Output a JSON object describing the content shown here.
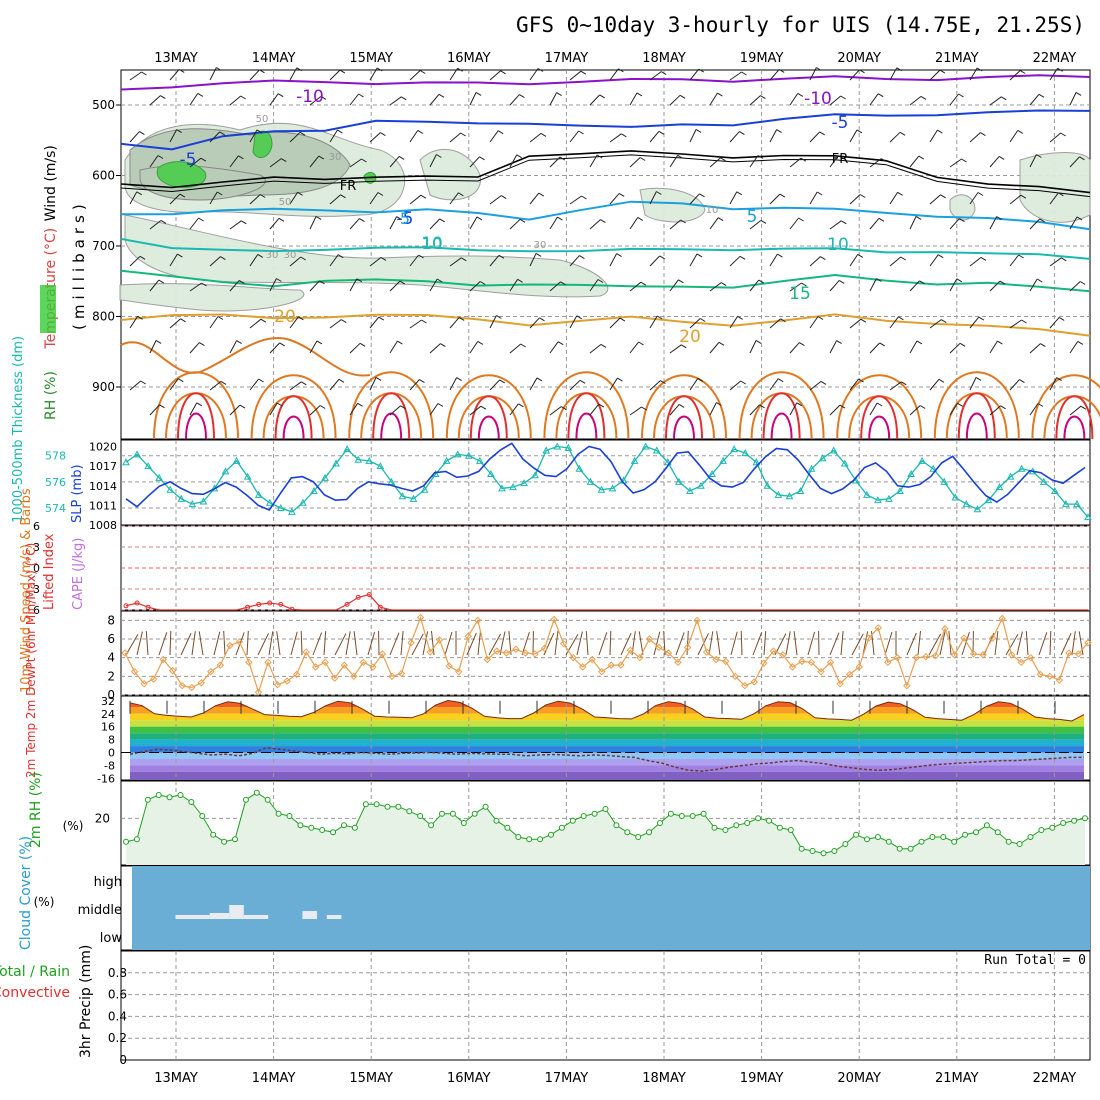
{
  "title": "GFS 0~10day 3-hourly for UIS (14.75E, 21.25S)",
  "dates": [
    "13MAY",
    "14MAY",
    "15MAY",
    "16MAY",
    "17MAY",
    "18MAY",
    "19MAY",
    "20MAY",
    "21MAY",
    "22MAY"
  ],
  "colors": {
    "purple": "#8a12c8",
    "blue": "#1a3fd6",
    "cyan": "#1aa0e0",
    "teal": "#19b8b0",
    "green15": "#16b87a",
    "orange20": "#e0a030",
    "orange": "#e07820",
    "red": "#e03030",
    "rh_fill": "#e6f2e6",
    "rh_line": "#20a020",
    "cloud": "#6aaed6",
    "freeze": "#000000"
  },
  "chart_data": [
    {
      "type": "contour",
      "panel": "upper-air",
      "ylabel_parts": [
        "RH (%)",
        "Temperature (°C)",
        "Wind (m/s)"
      ],
      "yaxis_title": "(millibars)",
      "yticks": [
        500,
        600,
        700,
        800,
        900
      ],
      "ylim": [
        450,
        975
      ],
      "levels": [
        {
          "label": "-10",
          "values": [
            -10
          ],
          "color_key": "purple",
          "base": [
            478,
            472,
            470,
            468,
            466,
            468,
            470,
            470,
            468,
            466,
            466,
            464,
            464,
            463,
            462,
            462,
            462,
            462,
            460,
            458
          ]
        },
        {
          "label": "-5",
          "values": [
            -5
          ],
          "color_key": "blue",
          "base": [
            555,
            560,
            545,
            540,
            535,
            520,
            526,
            528,
            524,
            528,
            534,
            528,
            526,
            520,
            516,
            514,
            512,
            512,
            510,
            506
          ]
        },
        {
          "label": "FR",
          "values": [
            0
          ],
          "color_key": "freeze",
          "base": [
            612,
            614,
            610,
            605,
            604,
            600,
            603,
            604,
            570,
            568,
            568,
            570,
            572,
            572,
            575,
            578,
            600,
            614,
            618,
            622
          ]
        },
        {
          "label": "5",
          "values": [
            5
          ],
          "color_key": "cyan",
          "base": [
            655,
            652,
            650,
            650,
            648,
            650,
            650,
            655,
            660,
            648,
            640,
            640,
            645,
            646,
            650,
            652,
            656,
            662,
            668,
            674
          ]
        },
        {
          "label": "10",
          "values": [
            10
          ],
          "color_key": "teal",
          "base": [
            690,
            700,
            706,
            710,
            704,
            700,
            704,
            708,
            705,
            706,
            707,
            705,
            703,
            704,
            706,
            708,
            706,
            712,
            714,
            716
          ]
        },
        {
          "label": "15",
          "values": [
            15
          ],
          "color_key": "green15",
          "base": [
            735,
            740,
            752,
            760,
            748,
            745,
            752,
            758,
            752,
            754,
            760,
            758,
            756,
            750,
            744,
            748,
            752,
            754,
            760,
            762
          ]
        },
        {
          "label": "20",
          "values": [
            20
          ],
          "color_key": "orange20",
          "base": [
            805,
            795,
            798,
            805,
            800,
            795,
            800,
            806,
            810,
            805,
            803,
            808,
            810,
            806,
            800,
            805,
            808,
            815,
            820,
            825
          ]
        }
      ],
      "contour_labels": [
        "-10",
        "-10",
        "-5",
        "-5",
        "FR",
        "FR",
        "-5",
        "5",
        "5",
        "10",
        "10",
        "10",
        "15",
        "20",
        "20"
      ],
      "rh_contour_labels": [
        "50",
        "30",
        "30",
        "50",
        "30",
        "30",
        "10"
      ]
    },
    {
      "type": "line",
      "panel": "thickness-slp",
      "ylabel_left": "1000-500mb Thickness (dm)",
      "ylabel_right": "SLP (mb)",
      "yticks_left": [
        574,
        576,
        578
      ],
      "yticks_right": [
        1008,
        1011,
        1014,
        1017,
        1020
      ],
      "ylim_left": [
        572.7,
        579.2
      ],
      "ylim_right": [
        1008,
        1021
      ],
      "series": [
        {
          "name": "1000-500mb Thickness (dm)",
          "color_key": "teal",
          "marker": "triangle",
          "values": [
            577.5,
            578.1,
            577.2,
            576.3,
            575.4,
            574.7,
            574.3,
            574.5,
            575.5,
            576.8,
            577.6,
            576.4,
            575.0,
            574.4,
            574.0,
            573.7,
            574.4,
            575.3,
            576.3,
            577.4,
            578.5,
            577.7,
            577.6,
            577.2,
            576.0,
            574.9,
            574.7,
            575.4,
            576.6,
            577.6,
            578.1,
            578.0,
            577.6,
            576.6,
            575.5,
            575.6,
            575.9,
            576.5,
            578.4,
            578.7,
            578.6,
            577.0,
            576.0,
            575.4,
            575.5,
            576.1,
            577.6,
            578.7,
            578.4,
            577.5,
            576.0,
            575.3,
            575.7,
            576.6,
            577.6,
            578.5,
            578.2,
            577.5,
            575.7,
            575.0,
            574.9,
            575.3,
            577.0,
            577.8,
            578.4,
            577.4,
            576.1,
            575.0,
            574.6,
            574.7,
            575.3,
            576.6,
            577.6,
            577.0,
            576.0,
            574.8,
            574.3,
            573.9,
            574.6,
            575.6,
            576.4,
            577.0,
            576.8,
            576.0,
            575.3,
            574.3,
            574.3,
            573.3
          ]
        },
        {
          "name": "SLP (mb)",
          "color_key": "blue",
          "marker": "none",
          "values": [
            1012.0,
            1010.8,
            1012.4,
            1013.9,
            1014.6,
            1013.6,
            1012.8,
            1012.7,
            1013.5,
            1014.5,
            1013.8,
            1012.5,
            1011.0,
            1010.3,
            1012.8,
            1015.2,
            1015.4,
            1014.6,
            1012.6,
            1011.8,
            1011.9,
            1013.6,
            1014.6,
            1014.3,
            1014.1,
            1013.6,
            1013.2,
            1014.0,
            1016.0,
            1016.2,
            1015.3,
            1015.5,
            1016.2,
            1018.1,
            1019.5,
            1020.5,
            1018.1,
            1016.7,
            1015.6,
            1015.4,
            1016.6,
            1018.8,
            1020.0,
            1019.6,
            1017.7,
            1014.7,
            1012.9,
            1013.4,
            1014.6,
            1016.7,
            1019.0,
            1019.2,
            1017.2,
            1015.1,
            1014.0,
            1013.8,
            1014.5,
            1016.6,
            1018.4,
            1019.7,
            1019.5,
            1017.9,
            1015.7,
            1013.6,
            1012.8,
            1013.5,
            1014.8,
            1016.8,
            1017.5,
            1016.2,
            1014.0,
            1013.8,
            1014.2,
            1015.4,
            1017.5,
            1018.5,
            1016.5,
            1014.4,
            1012.5,
            1011.5,
            1012.7,
            1014.5,
            1016.3,
            1016.0,
            1014.9,
            1014.4,
            1015.6,
            1016.8
          ]
        }
      ]
    },
    {
      "type": "line",
      "panel": "lifted-index-cape",
      "ylabel_left": "Lifted Index",
      "ylabel_right": "CAPE (J/kg)",
      "yticks": [
        "6",
        "3",
        "0",
        "3",
        "6"
      ],
      "ylim": [
        -6,
        6
      ],
      "series": [
        {
          "name": "Lifted Index",
          "color_key": "red",
          "values": [
            5.4,
            5.0,
            5.6,
            6.0,
            6.0,
            6.0,
            6.0,
            6.0,
            6.0,
            6.0,
            6.0,
            5.6,
            5.2,
            5.0,
            5.2,
            5.9,
            6.0,
            6.0,
            6.0,
            6.0,
            5.2,
            4.2,
            3.8,
            5.6,
            6.0,
            6.0,
            6.0,
            6.0,
            6.0,
            6.0,
            6.0,
            6.0,
            6.0,
            6.0,
            6.0,
            6.0,
            6.0,
            6.0,
            6.0,
            6.0,
            6.0,
            6.0,
            6.0,
            6.0,
            6.0,
            6.0,
            6.0,
            6.0,
            6.0,
            6.0,
            6.0,
            6.0,
            6.0,
            6.0,
            6.0,
            6.0,
            6.0,
            6.0,
            6.0,
            6.0,
            6.0,
            6.0,
            6.0,
            6.0,
            6.0,
            6.0,
            6.0,
            6.0,
            6.0,
            6.0,
            6.0,
            6.0,
            6.0,
            6.0,
            6.0,
            6.0,
            6.0,
            6.0,
            6.0,
            6.0,
            6.0,
            6.0,
            6.0,
            6.0,
            6.0,
            6.0,
            6.0,
            6.0
          ]
        }
      ]
    },
    {
      "type": "line",
      "panel": "10m-wind",
      "ylabel": "10m Wind Speed (m/s) & Barbs",
      "yticks": [
        0,
        2,
        4,
        6,
        8
      ],
      "ylim": [
        0,
        9
      ],
      "series": [
        {
          "name": "10m Wind Speed",
          "color_key": "orange20",
          "marker": "diamond",
          "values": [
            4.5,
            2.5,
            1.2,
            1.7,
            3.8,
            2.6,
            1.0,
            0.8,
            1.3,
            2.5,
            3.2,
            5.3,
            5.7,
            3.5,
            0.3,
            3.5,
            1.1,
            1.5,
            2.2,
            4.6,
            3.0,
            3.5,
            1.8,
            3.2,
            2.0,
            3.5,
            3.0,
            4.4,
            2.0,
            2.3,
            5.6,
            8.3,
            4.6,
            5.9,
            3.1,
            2.5,
            6.3,
            8.0,
            3.8,
            4.7,
            4.5,
            4.9,
            4.5,
            4.4,
            5.0,
            8.1,
            5.5,
            4.0,
            3.0,
            3.8,
            2.5,
            3.2,
            3.2,
            4.8,
            4.0,
            6.0,
            5.1,
            4.5,
            3.5,
            5.1,
            8.0,
            4.6,
            3.8,
            3.6,
            2.0,
            1.0,
            1.4,
            3.4,
            4.7,
            4.3,
            3.0,
            3.6,
            3.5,
            2.5,
            3.5,
            1.2,
            2.2,
            3.0,
            6.1,
            7.2,
            3.5,
            4.0,
            1.0,
            4.0,
            4.1,
            4.2,
            7.1,
            4.3,
            6.1,
            4.4,
            4.3,
            6.1,
            8.2,
            4.3,
            3.5,
            4.0,
            2.2,
            2.0,
            1.6,
            4.5,
            4.4,
            5.6
          ]
        }
      ]
    },
    {
      "type": "area",
      "panel": "2m-temp",
      "ylabel": "2m Temp 2m DewPt (6hr Min/Max) (°C)",
      "yticks": [
        32,
        24,
        16,
        8,
        0,
        -8,
        -16
      ],
      "ylim": [
        -17,
        35
      ],
      "series": [
        {
          "name": "2m Temp",
          "color_key": "orange",
          "values": [
            30.8,
            29.0,
            24.0,
            23.0,
            22.5,
            22.0,
            24.5,
            29.0,
            31.5,
            30.5,
            27.0,
            23.5,
            23.0,
            22.5,
            22.2,
            24.8,
            29.0,
            31.8,
            30.8,
            27.0,
            22.5,
            22.0,
            21.8,
            21.5,
            24.0,
            29.5,
            32.2,
            31.0,
            27.2,
            22.4,
            21.5,
            21.0,
            21.0,
            24.5,
            29.5,
            31.8,
            30.6,
            26.8,
            22.0,
            21.5,
            21.0,
            20.8,
            24.0,
            29.2,
            31.5,
            30.5,
            27.0,
            22.0,
            21.2,
            21.0,
            20.6,
            24.0,
            29.0,
            31.5,
            30.8,
            27.0,
            21.5,
            20.8,
            20.5,
            20.0,
            23.8,
            28.8,
            31.2,
            30.2,
            26.5,
            21.8,
            21.0,
            20.5,
            20.0,
            23.5,
            28.5,
            31.5,
            30.5,
            26.8,
            22.0,
            21.0,
            20.5,
            19.5,
            23.5
          ]
        },
        {
          "name": "2m DewPt",
          "color_key": "purple",
          "values": [
            -1.0,
            0.5,
            2.0,
            1.5,
            0.5,
            -0.5,
            -1.5,
            -1.0,
            -2.0,
            -0.5,
            3.0,
            2.0,
            1.0,
            0.0,
            -1.0,
            -0.5,
            -0.8,
            0.0,
            -0.5,
            -1.0,
            -0.5,
            -0.3,
            0.0,
            -0.5,
            -1.0,
            -0.5,
            -0.8,
            -1.0,
            -1.0,
            -2.0,
            -1.5,
            -1.2,
            -1.5,
            -2.0,
            -1.5,
            -1.8,
            -2.5,
            -3.0,
            -5.0,
            -6.5,
            -9.0,
            -11.0,
            -11.5,
            -10.5,
            -9.0,
            -8.0,
            -7.0,
            -6.5,
            -5.5,
            -5.0,
            -6.0,
            -7.0,
            -8.5,
            -9.5,
            -10.5,
            -11.0,
            -10.5,
            -9.5,
            -8.5,
            -7.5,
            -7.0,
            -6.5,
            -6.0,
            -5.5,
            -5.0,
            -5.0,
            -4.5,
            -4.0,
            -3.5,
            -3.0,
            -3.0
          ]
        }
      ]
    },
    {
      "type": "area",
      "panel": "2m-rh",
      "ylabel": "2m RH (%)",
      "yticks": [
        20
      ],
      "ylim": [
        0,
        36
      ],
      "series": [
        {
          "name": "2m RH",
          "color_key": "rh_line",
          "values": [
            10,
            11,
            28,
            30,
            29,
            30,
            27,
            21,
            13,
            10,
            11,
            28,
            31,
            28,
            22,
            21,
            17,
            16,
            15,
            14,
            17,
            16,
            26,
            26,
            25,
            25,
            23,
            21,
            17,
            22,
            22,
            18,
            22,
            25,
            19,
            16,
            12,
            11,
            11,
            13,
            16,
            19,
            21,
            22,
            24,
            17,
            14,
            12,
            14,
            18,
            22,
            21,
            21,
            22,
            16,
            15,
            17,
            18,
            20,
            19,
            16,
            15,
            7,
            6,
            5,
            6,
            9,
            13,
            11,
            12,
            10,
            7,
            7,
            10,
            12,
            12,
            10,
            13,
            14,
            17,
            14,
            10,
            9,
            12,
            15,
            16,
            18,
            19,
            20
          ]
        }
      ]
    },
    {
      "type": "table",
      "panel": "cloud-cover",
      "ylabel": "Cloud Cover (%)",
      "levels": [
        "high",
        "middle",
        "low"
      ],
      "bars": [
        {
          "level": "middle",
          "start_day": 0.2,
          "end_day": 0.55,
          "percent": 10
        },
        {
          "level": "middle",
          "start_day": 0.55,
          "end_day": 0.75,
          "percent": 20
        },
        {
          "level": "middle",
          "start_day": 0.75,
          "end_day": 0.9,
          "percent": 60
        },
        {
          "level": "middle",
          "start_day": 0.9,
          "end_day": 1.15,
          "percent": 10
        },
        {
          "level": "middle",
          "start_day": 1.5,
          "end_day": 1.65,
          "percent": 30
        },
        {
          "level": "middle",
          "start_day": 1.75,
          "end_day": 1.9,
          "percent": 10
        }
      ]
    },
    {
      "type": "bar",
      "panel": "precip",
      "ylabel_parts": [
        "Total / Rain",
        "Convective"
      ],
      "ylabel_axis": "3hr Precip (mm)",
      "yticks": [
        "0",
        "0.2",
        "0.4",
        "0.6",
        "0.8"
      ],
      "ylim": [
        0,
        1
      ],
      "values": [],
      "run_total_label": "Run Total = 0"
    }
  ]
}
